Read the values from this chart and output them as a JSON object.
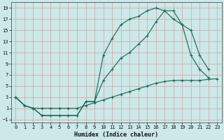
{
  "bg_color": "#cce8e8",
  "grid_color": "#d4a0a0",
  "line_color": "#1a6b5a",
  "xlabel": "Humidex (Indice chaleur)",
  "xlim": [
    -0.5,
    23.5
  ],
  "ylim": [
    -1.5,
    20
  ],
  "xticks": [
    0,
    1,
    2,
    3,
    4,
    5,
    6,
    7,
    8,
    9,
    10,
    11,
    12,
    13,
    14,
    15,
    16,
    17,
    18,
    19,
    20,
    21,
    22,
    23
  ],
  "yticks": [
    -1,
    1,
    3,
    5,
    7,
    9,
    11,
    13,
    15,
    17,
    19
  ],
  "line_upper_x": [
    0,
    1,
    2,
    3,
    4,
    5,
    6,
    7,
    8,
    9,
    10,
    11,
    12,
    13,
    14,
    15,
    16,
    17,
    18,
    19,
    20,
    21,
    22
  ],
  "line_upper_y": [
    3.0,
    1.5,
    1.0,
    -0.3,
    -0.3,
    -0.3,
    -0.3,
    -0.3,
    2.2,
    2.2,
    10.5,
    13.5,
    16.0,
    17.0,
    17.5,
    18.5,
    19.0,
    18.5,
    17.0,
    16.0,
    15.0,
    10.5,
    8.0
  ],
  "line_mid_x": [
    0,
    1,
    2,
    3,
    4,
    5,
    6,
    7,
    8,
    9,
    10,
    11,
    12,
    13,
    14,
    15,
    16,
    17,
    18,
    19,
    20,
    21,
    22
  ],
  "line_mid_y": [
    3.0,
    1.5,
    1.0,
    -0.3,
    -0.3,
    -0.3,
    -0.3,
    -0.3,
    2.2,
    2.2,
    6.0,
    8.0,
    10.0,
    11.0,
    12.5,
    14.0,
    16.5,
    18.5,
    18.5,
    16.0,
    10.5,
    8.0,
    6.5
  ],
  "line_low_x": [
    0,
    1,
    2,
    3,
    4,
    5,
    6,
    7,
    8,
    9,
    10,
    11,
    12,
    13,
    14,
    15,
    16,
    17,
    18,
    19,
    20,
    21,
    22,
    23
  ],
  "line_low_y": [
    3.0,
    1.5,
    1.0,
    1.0,
    1.0,
    1.0,
    1.0,
    1.0,
    1.5,
    2.0,
    2.5,
    3.0,
    3.5,
    4.0,
    4.5,
    5.0,
    5.5,
    5.8,
    6.0,
    6.0,
    6.0,
    6.0,
    6.2,
    6.3
  ]
}
